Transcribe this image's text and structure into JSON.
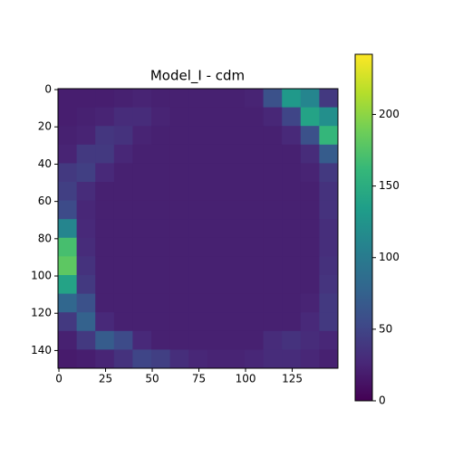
{
  "chart_data": {
    "type": "heatmap",
    "title": "Model_I - cdm",
    "colormap": "viridis",
    "xlim": [
      -0.5,
      149.5
    ],
    "ylim": [
      149.5,
      -0.5
    ],
    "xticks": [
      0,
      25,
      50,
      75,
      100,
      125
    ],
    "yticks": [
      0,
      20,
      40,
      60,
      80,
      100,
      120,
      140
    ],
    "clim": [
      0,
      242
    ],
    "cticks": [
      0,
      50,
      100,
      150,
      200
    ],
    "values": [
      [
        20,
        20,
        20,
        22,
        24,
        22,
        22,
        22,
        22,
        22,
        24,
        60,
        130,
        110,
        40
      ],
      [
        20,
        22,
        24,
        30,
        30,
        24,
        22,
        22,
        22,
        22,
        22,
        26,
        50,
        140,
        120
      ],
      [
        22,
        24,
        38,
        35,
        24,
        22,
        22,
        22,
        22,
        22,
        22,
        22,
        28,
        60,
        160
      ],
      [
        24,
        40,
        40,
        26,
        22,
        22,
        22,
        22,
        22,
        22,
        22,
        22,
        22,
        30,
        70
      ],
      [
        40,
        45,
        28,
        22,
        22,
        22,
        22,
        22,
        22,
        22,
        22,
        22,
        22,
        24,
        40
      ],
      [
        45,
        30,
        22,
        22,
        22,
        22,
        22,
        22,
        22,
        22,
        22,
        22,
        22,
        22,
        35
      ],
      [
        55,
        26,
        22,
        22,
        22,
        22,
        22,
        22,
        22,
        22,
        22,
        22,
        22,
        22,
        35
      ],
      [
        110,
        28,
        22,
        22,
        22,
        22,
        22,
        22,
        22,
        22,
        22,
        22,
        22,
        22,
        32
      ],
      [
        170,
        30,
        22,
        22,
        22,
        22,
        22,
        22,
        22,
        22,
        22,
        22,
        22,
        22,
        32
      ],
      [
        180,
        35,
        22,
        22,
        22,
        22,
        22,
        22,
        22,
        22,
        22,
        22,
        22,
        22,
        34
      ],
      [
        140,
        40,
        22,
        22,
        22,
        22,
        22,
        22,
        22,
        22,
        22,
        22,
        22,
        22,
        36
      ],
      [
        80,
        60,
        22,
        22,
        22,
        22,
        22,
        22,
        22,
        22,
        22,
        22,
        22,
        24,
        40
      ],
      [
        40,
        75,
        28,
        22,
        22,
        22,
        22,
        22,
        22,
        22,
        22,
        22,
        22,
        28,
        40
      ],
      [
        22,
        40,
        70,
        55,
        28,
        22,
        22,
        22,
        22,
        22,
        22,
        30,
        35,
        30,
        26
      ],
      [
        18,
        20,
        25,
        35,
        50,
        45,
        32,
        26,
        24,
        24,
        26,
        30,
        30,
        26,
        22
      ]
    ]
  }
}
